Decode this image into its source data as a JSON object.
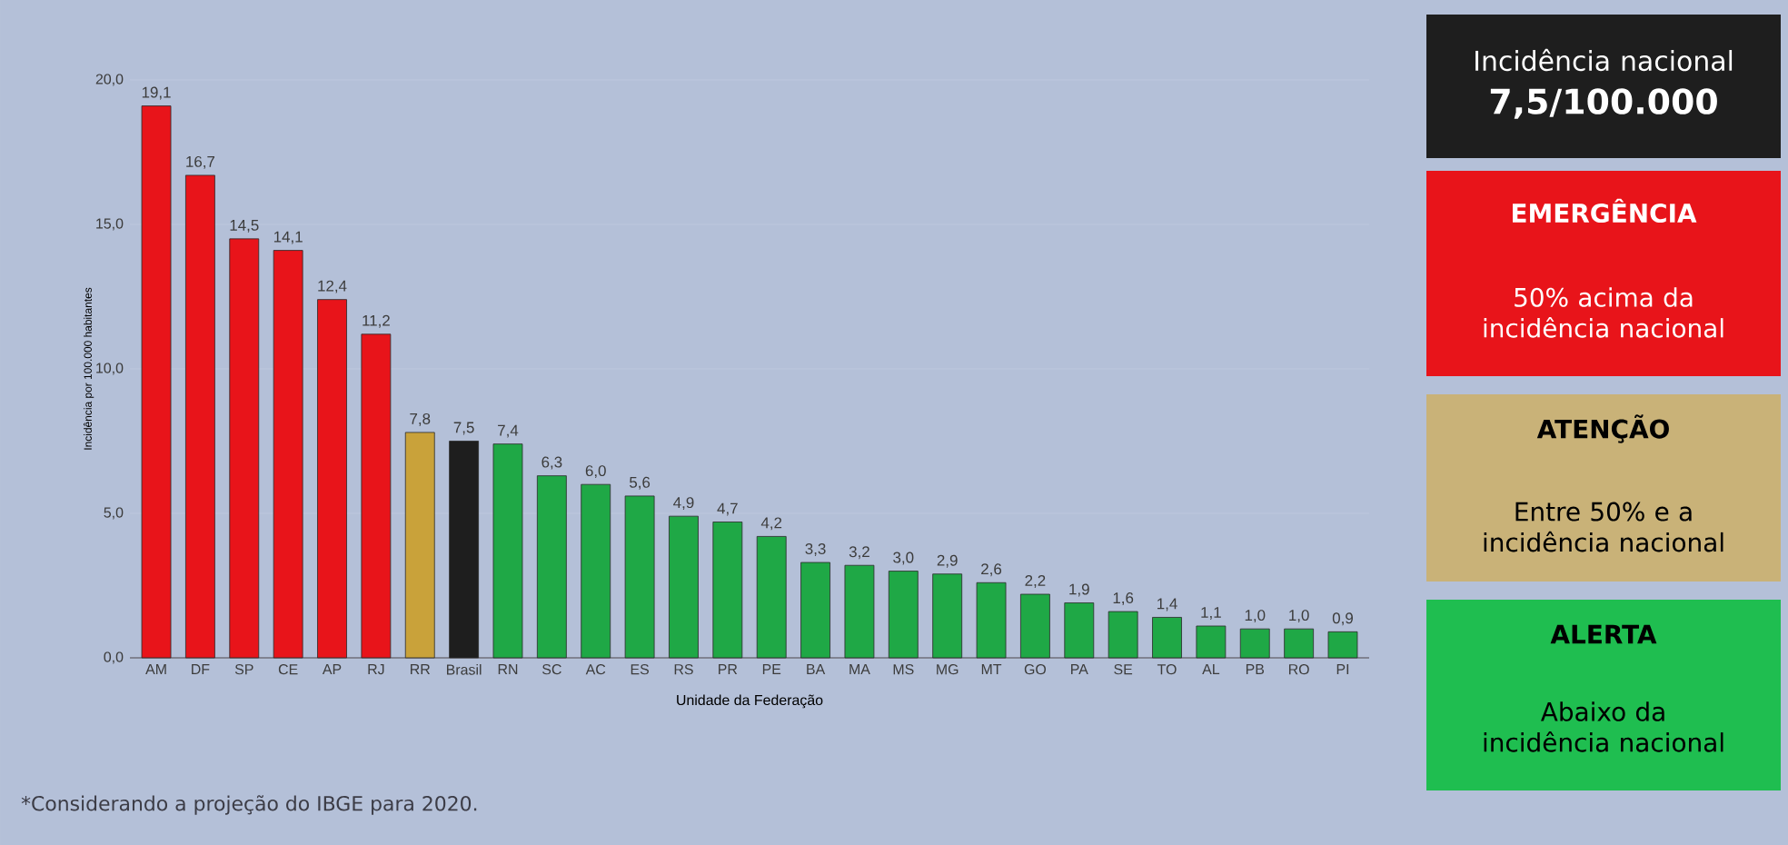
{
  "chart_data": {
    "type": "bar",
    "xlabel": "Unidade da Federação",
    "ylabel": "Incidência por 100.000 habitantes",
    "categories": [
      "AM",
      "DF",
      "SP",
      "CE",
      "AP",
      "RJ",
      "RR",
      "Brasil",
      "RN",
      "SC",
      "AC",
      "ES",
      "RS",
      "PR",
      "PE",
      "BA",
      "MA",
      "MS",
      "MG",
      "MT",
      "GO",
      "PA",
      "SE",
      "TO",
      "AL",
      "PB",
      "RO",
      "PI"
    ],
    "values": [
      19.1,
      16.7,
      14.5,
      14.1,
      12.4,
      11.2,
      7.8,
      7.5,
      7.4,
      6.3,
      6.0,
      5.6,
      4.9,
      4.7,
      4.2,
      3.3,
      3.2,
      3.0,
      2.9,
      2.6,
      2.2,
      1.9,
      1.6,
      1.4,
      1.1,
      1.0,
      1.0,
      0.9
    ],
    "value_labels": [
      "19,1",
      "16,7",
      "14,5",
      "14,1",
      "12,4",
      "11,2",
      "7,8",
      "7,5",
      "7,4",
      "6,3",
      "6,0",
      "5,6",
      "4,9",
      "4,7",
      "4,2",
      "3,3",
      "3,2",
      "3,0",
      "2,9",
      "2,6",
      "2,2",
      "1,9",
      "1,6",
      "1,4",
      "1,1",
      "1,0",
      "1,0",
      "0,9"
    ],
    "colors": [
      "#e8141a",
      "#e8141a",
      "#e8141a",
      "#e8141a",
      "#e8141a",
      "#e8141a",
      "#c9a23a",
      "#1e1e1e",
      "#1fa846",
      "#1fa846",
      "#1fa846",
      "#1fa846",
      "#1fa846",
      "#1fa846",
      "#1fa846",
      "#1fa846",
      "#1fa846",
      "#1fa846",
      "#1fa846",
      "#1fa846",
      "#1fa846",
      "#1fa846",
      "#1fa846",
      "#1fa846",
      "#1fa846",
      "#1fa846",
      "#1fa846",
      "#1fa846"
    ],
    "ylim": [
      0,
      20
    ],
    "yticks": [
      {
        "value": 0,
        "label": "0,0"
      },
      {
        "value": 5,
        "label": "5,0"
      },
      {
        "value": 10,
        "label": "10,0"
      },
      {
        "value": 15,
        "label": "15,0"
      },
      {
        "value": 20,
        "label": "20,0"
      }
    ],
    "grid": "y",
    "annotations": [
      "Incidência nacional",
      "7,5/100.000",
      "EMERGÊNCIA",
      "50% acima da incidência nacional",
      "ATENÇÃO",
      "Entre 50% e a incidência nacional",
      "ALERTA",
      "Abaixo da incidência nacional",
      "*Considerando a projeção do IBGE para 2020."
    ]
  }
}
